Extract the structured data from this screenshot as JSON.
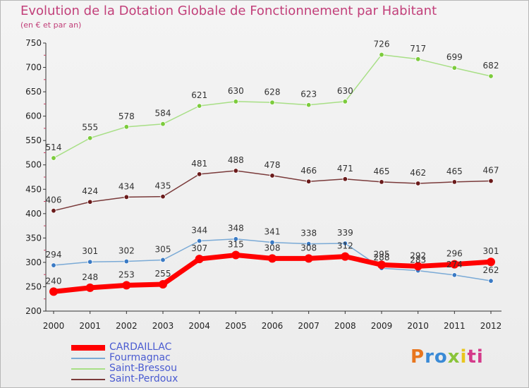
{
  "header": {
    "title": "Evolution de la Dotation Globale de Fonctionnement par Habitant",
    "subtitle": "(en € et par an)"
  },
  "logo": {
    "text": "Proxiti",
    "colors": [
      "#e8761e",
      "#3a8ad6",
      "#8ac43a",
      "#e8c61e",
      "#d43a8a"
    ]
  },
  "chart_data": {
    "type": "line",
    "title": "Evolution de la Dotation Globale de Fonctionnement par Habitant",
    "subtitle": "(en € et par an)",
    "xlabel": "",
    "ylabel": "",
    "x": [
      "2000",
      "2001",
      "2002",
      "2003",
      "2004",
      "2005",
      "2006",
      "2007",
      "2008",
      "2009",
      "2010",
      "2011",
      "2012"
    ],
    "ylim": [
      200,
      750
    ],
    "yticks": [
      200,
      250,
      300,
      350,
      400,
      450,
      500,
      550,
      600,
      650,
      700,
      750
    ],
    "grid": false,
    "legend": "bottom-left",
    "series": [
      {
        "name": "Saint-Bressou",
        "color": "#a8df86",
        "marker": "#7ccb3c",
        "values": [
          514,
          555,
          578,
          584,
          621,
          630,
          628,
          623,
          630,
          726,
          717,
          699,
          682
        ]
      },
      {
        "name": "Saint-Perdoux",
        "color": "#7a3a3a",
        "marker": "#6a1a1a",
        "values": [
          406,
          424,
          434,
          435,
          481,
          488,
          478,
          466,
          471,
          465,
          462,
          465,
          467
        ]
      },
      {
        "name": "Fourmagnac",
        "color": "#7aaad6",
        "marker": "#3a7ac4",
        "values": [
          294,
          301,
          302,
          305,
          344,
          348,
          341,
          338,
          339,
          288,
          283,
          274,
          262
        ],
        "labels": [
          "294",
          "301",
          "302",
          "305",
          "344",
          "348",
          "341",
          "338",
          "339",
          "288",
          "283",
          "274",
          "262"
        ]
      },
      {
        "name": "CARDAILLAC",
        "color": "#ff0000",
        "marker": "#ff0000",
        "values": [
          240,
          248,
          253,
          255,
          307,
          315,
          308,
          308,
          312,
          295,
          292,
          296,
          301
        ]
      }
    ]
  }
}
